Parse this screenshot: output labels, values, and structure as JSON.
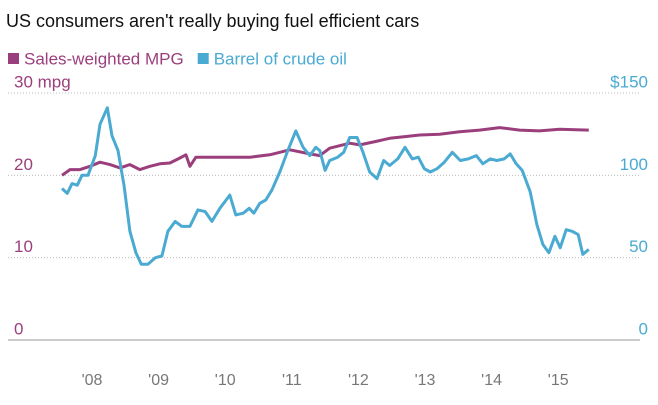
{
  "chart_data": {
    "type": "line",
    "title": "US consumers aren't really buying fuel efficient cars",
    "xlim": [
      2007,
      2016.5
    ],
    "xticks": [
      {
        "value": 2008,
        "label": "'08"
      },
      {
        "value": 2009,
        "label": "'09"
      },
      {
        "value": 2010,
        "label": "'10"
      },
      {
        "value": 2011,
        "label": "'11"
      },
      {
        "value": 2012,
        "label": "'12"
      },
      {
        "value": 2013,
        "label": "'13"
      },
      {
        "value": 2014,
        "label": "'14"
      },
      {
        "value": 2015,
        "label": "'15"
      }
    ],
    "ylim": [
      0,
      30
    ],
    "yticks": [
      0,
      10,
      20,
      {
        "value": 30,
        "label": "30 mpg"
      }
    ],
    "y2lim": [
      0,
      150
    ],
    "y2ticks": [
      0,
      50,
      100,
      {
        "value": 150,
        "label": "$150"
      }
    ],
    "grid": true,
    "series": [
      {
        "name": "Sales-weighted MPG",
        "color": "#9b3f7c",
        "x": [
          2007.82,
          2007.94,
          2008.09,
          2008.24,
          2008.39,
          2008.54,
          2008.69,
          2008.84,
          2008.99,
          2009.14,
          2009.29,
          2009.44,
          2009.59,
          2009.68,
          2009.74,
          2009.83,
          2010.04,
          2010.34,
          2010.64,
          2010.94,
          2011.24,
          2011.54,
          2011.69,
          2011.84,
          2011.99,
          2012.14,
          2012.29,
          2012.52,
          2012.74,
          2012.97,
          2013.19,
          2013.49,
          2013.79,
          2014.09,
          2014.39,
          2014.69,
          2014.99,
          2015.29,
          2015.73
        ],
        "values": [
          20.0,
          20.7,
          20.7,
          21.1,
          21.6,
          21.3,
          20.9,
          21.3,
          20.7,
          21.1,
          21.4,
          21.5,
          22.1,
          22.5,
          21.1,
          22.2,
          22.2,
          22.2,
          22.2,
          22.5,
          23.1,
          22.6,
          22.4,
          23.3,
          23.6,
          23.9,
          23.7,
          24.1,
          24.5,
          24.7,
          24.9,
          25.0,
          25.3,
          25.5,
          25.8,
          25.5,
          25.4,
          25.6,
          25.5
        ]
      },
      {
        "name": "Barrel of crude oil",
        "color": "#4aaad2",
        "axis": "y2",
        "x": [
          2007.82,
          2007.9,
          2007.97,
          2008.05,
          2008.12,
          2008.21,
          2008.32,
          2008.39,
          2008.5,
          2008.57,
          2008.66,
          2008.75,
          2008.84,
          2008.93,
          2009.01,
          2009.11,
          2009.22,
          2009.32,
          2009.41,
          2009.52,
          2009.62,
          2009.74,
          2009.86,
          2009.97,
          2010.07,
          2010.19,
          2010.34,
          2010.43,
          2010.54,
          2010.63,
          2010.7,
          2010.79,
          2010.88,
          2010.97,
          2011.09,
          2011.21,
          2011.33,
          2011.44,
          2011.54,
          2011.63,
          2011.69,
          2011.77,
          2011.84,
          2011.96,
          2012.05,
          2012.14,
          2012.25,
          2012.34,
          2012.44,
          2012.55,
          2012.65,
          2012.74,
          2012.86,
          2012.97,
          2013.08,
          2013.17,
          2013.26,
          2013.35,
          2013.45,
          2013.56,
          2013.68,
          2013.8,
          2013.92,
          2014.04,
          2014.14,
          2014.25,
          2014.35,
          2014.46,
          2014.55,
          2014.64,
          2014.73,
          2014.85,
          2014.95,
          2015.04,
          2015.13,
          2015.22,
          2015.3,
          2015.39,
          2015.48,
          2015.57,
          2015.64,
          2015.73
        ],
        "values": [
          92,
          89,
          95,
          94,
          100,
          100,
          112,
          131,
          141,
          124,
          115,
          94,
          66,
          53,
          46,
          46,
          50,
          51,
          66,
          72,
          69,
          69,
          79,
          78,
          72,
          80,
          88,
          76,
          77,
          80,
          77,
          83,
          85,
          91,
          102,
          115,
          127,
          117,
          112,
          117,
          115,
          103,
          109,
          111,
          114,
          123,
          123,
          114,
          102,
          98,
          109,
          106,
          110,
          117,
          110,
          111,
          104,
          102,
          104,
          108,
          114,
          109,
          110,
          112,
          107,
          110,
          109,
          110,
          113,
          107,
          103,
          90,
          70,
          58,
          53,
          63,
          56,
          67,
          66,
          64,
          52,
          55
        ]
      }
    ]
  }
}
